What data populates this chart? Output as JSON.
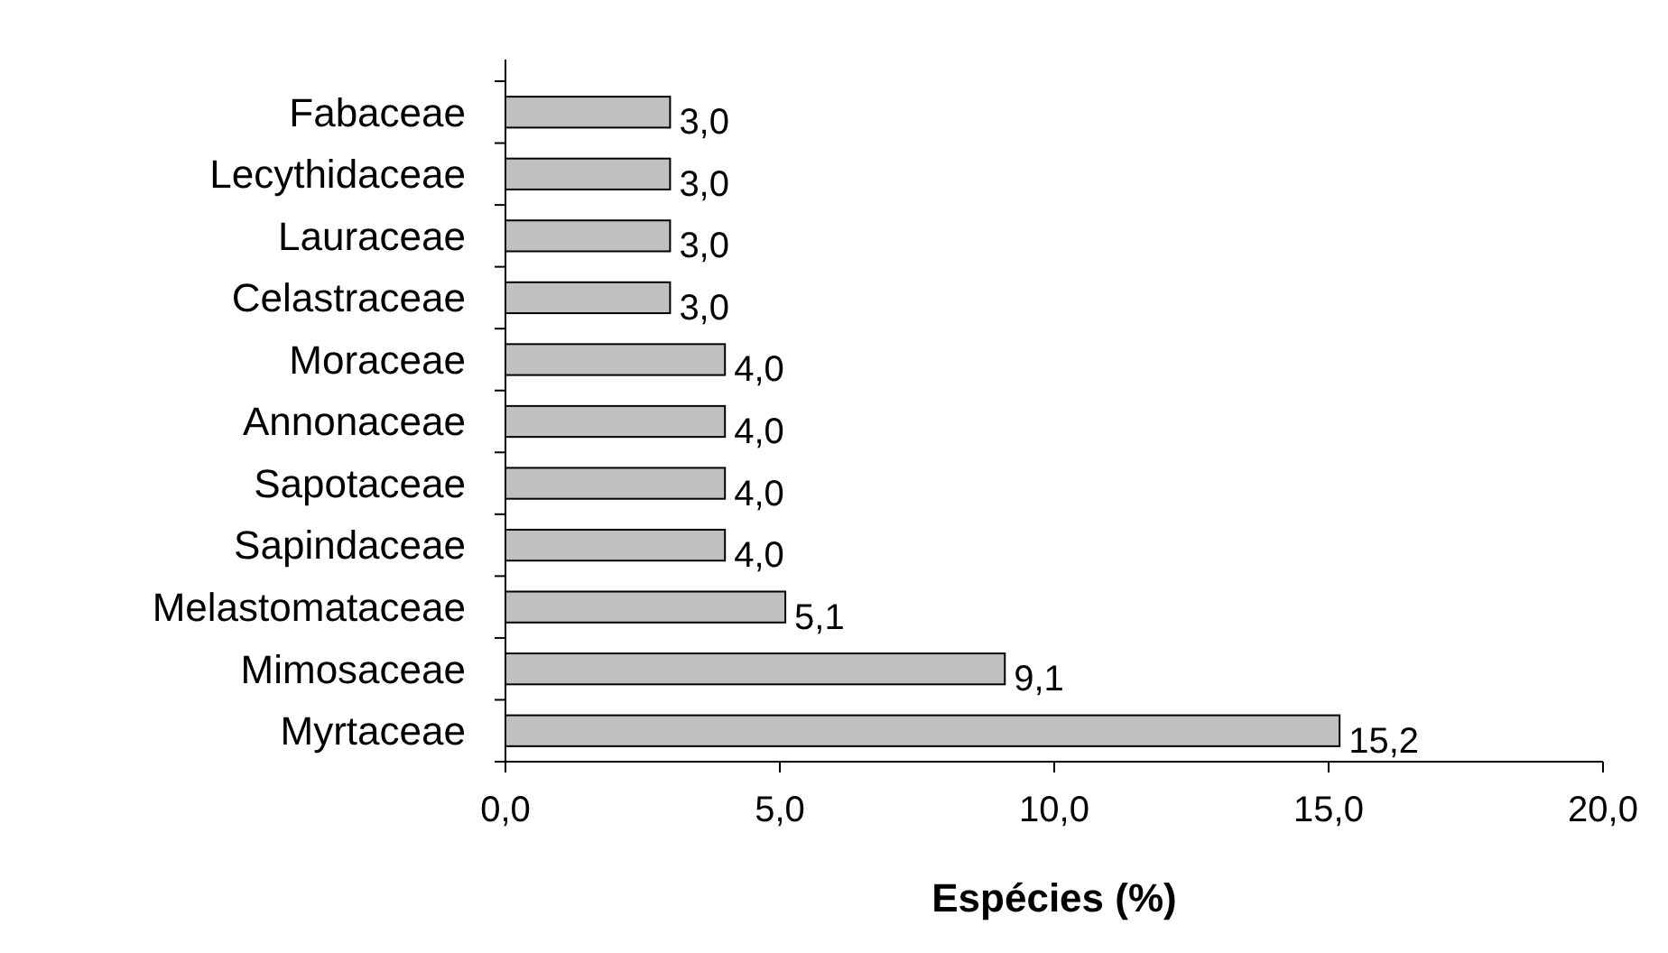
{
  "chart_data": {
    "type": "bar",
    "orientation": "horizontal",
    "xlabel": "Espécies (%)",
    "categories": [
      "Fabaceae",
      "Lecythidaceae",
      "Lauraceae",
      "Celastraceae",
      "Moraceae",
      "Annonaceae",
      "Sapotaceae",
      "Sapindaceae",
      "Melastomataceae",
      "Mimosaceae",
      "Myrtaceae"
    ],
    "values": [
      3.0,
      3.0,
      3.0,
      3.0,
      4.0,
      4.0,
      4.0,
      4.0,
      5.1,
      9.1,
      15.2
    ],
    "value_labels": [
      "3,0",
      "3,0",
      "3,0",
      "3,0",
      "4,0",
      "4,0",
      "4,0",
      "4,0",
      "5,1",
      "9,1",
      "15,2"
    ],
    "color": "#c0c0c0",
    "xlim": [
      0,
      20
    ],
    "xticks": [
      {
        "value": 0,
        "label": "0,0"
      },
      {
        "value": 5,
        "label": "5,0"
      },
      {
        "value": 10,
        "label": "10,0"
      },
      {
        "value": 15,
        "label": "15,0"
      },
      {
        "value": 20,
        "label": "20,0"
      }
    ],
    "grid": false
  }
}
